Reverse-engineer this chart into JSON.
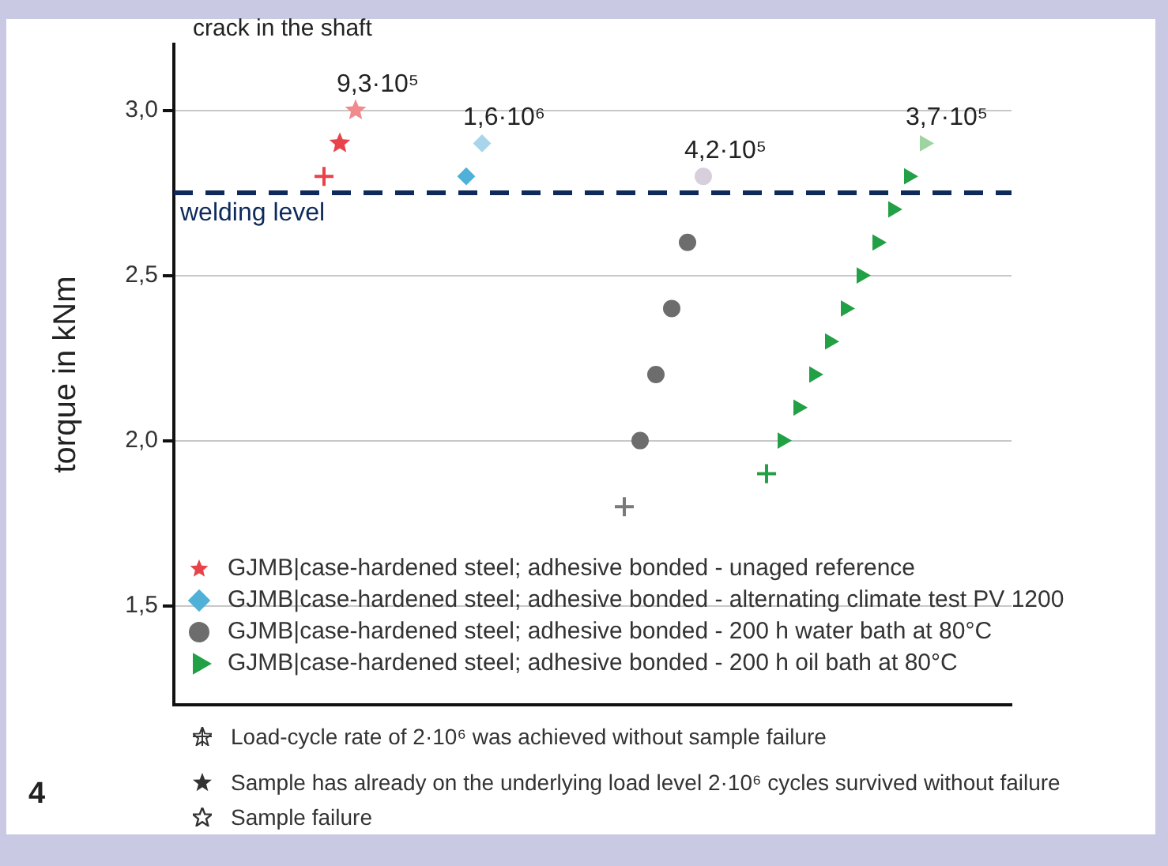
{
  "chart_data": {
    "type": "scatter",
    "categories": [
      null,
      null,
      null,
      null,
      null,
      null,
      null,
      null,
      null,
      null,
      null,
      null,
      null,
      null,
      null,
      null,
      null,
      null,
      null,
      null,
      null,
      null,
      null,
      null,
      null,
      null,
      null,
      null,
      null,
      null,
      null,
      null,
      null,
      null,
      null,
      null,
      null,
      null,
      null,
      null,
      null,
      null,
      null,
      null,
      null,
      null,
      null,
      null,
      null,
      null,
      null,
      null,
      null
    ],
    "ylabel": "torque in kNm",
    "ylim": [
      1.2,
      3.2
    ],
    "yticks": [
      {
        "value": 1.5,
        "label": "1,5"
      },
      {
        "value": 2,
        "label": "2,0"
      },
      {
        "value": 2.5,
        "label": "2,5"
      },
      {
        "value": 3,
        "label": "3,0"
      }
    ],
    "tick_labels": "y",
    "grid": "y",
    "legend": "bottom left",
    "series": [
      {
        "name": "GJMB|case-hardened steel; adhesive bonded - unaged reference",
        "color": "#e8434a",
        "marker": "star",
        "values": [
          null,
          null,
          null,
          null,
          null,
          null,
          null,
          null,
          null,
          null,
          2.9,
          null,
          null,
          null,
          null,
          null,
          null,
          null,
          null,
          null,
          null,
          null,
          null,
          null,
          null,
          null,
          null,
          null,
          null,
          null,
          null,
          null,
          null,
          null,
          null,
          null,
          null,
          null,
          null,
          null,
          null,
          null,
          null,
          null,
          null,
          null,
          null,
          null,
          null,
          null,
          null,
          null,
          null
        ]
      },
      {
        "color": "#e8434a",
        "marker": "cross",
        "values": [
          null,
          null,
          null,
          null,
          null,
          null,
          null,
          null,
          null,
          2.8,
          null,
          null,
          null,
          null,
          null,
          null,
          null,
          null,
          null,
          null,
          null,
          null,
          null,
          null,
          null,
          null,
          null,
          null,
          null,
          null,
          null,
          null,
          null,
          null,
          null,
          null,
          null,
          null,
          null,
          null,
          null,
          null,
          null,
          null,
          null,
          null,
          null,
          null,
          null,
          null,
          null,
          null,
          null
        ]
      },
      {
        "color": "#f08a8e",
        "marker": "star",
        "values": [
          null,
          null,
          null,
          null,
          null,
          null,
          null,
          null,
          null,
          null,
          null,
          3.0,
          null,
          null,
          null,
          null,
          null,
          null,
          null,
          null,
          null,
          null,
          null,
          null,
          null,
          null,
          null,
          null,
          null,
          null,
          null,
          null,
          null,
          null,
          null,
          null,
          null,
          null,
          null,
          null,
          null,
          null,
          null,
          null,
          null,
          null,
          null,
          null,
          null,
          null,
          null,
          null,
          null
        ],
        "value_labels": [
          null,
          null,
          null,
          null,
          null,
          null,
          null,
          null,
          null,
          null,
          null,
          "9,3·10⁵",
          null,
          null,
          null,
          null,
          null,
          null,
          null,
          null,
          null,
          null,
          null,
          null,
          null,
          null,
          null,
          null,
          null,
          null,
          null,
          null,
          null,
          null,
          null,
          null,
          null,
          null,
          null,
          null,
          null,
          null,
          null,
          null,
          null,
          null,
          null,
          null,
          null,
          null,
          null,
          null,
          null
        ]
      },
      {
        "name": "GJMB|case-hardened steel; adhesive bonded - alternating climate test PV 1200",
        "color": "#4fb0d8",
        "marker": "diamond",
        "values": [
          null,
          null,
          null,
          null,
          null,
          null,
          null,
          null,
          null,
          null,
          null,
          null,
          null,
          null,
          null,
          null,
          null,
          null,
          2.8,
          null,
          null,
          null,
          null,
          null,
          null,
          null,
          null,
          null,
          null,
          null,
          null,
          null,
          null,
          null,
          null,
          null,
          null,
          null,
          null,
          null,
          null,
          null,
          null,
          null,
          null,
          null,
          null,
          null,
          null,
          null,
          null,
          null,
          null
        ]
      },
      {
        "color": "#a8d4ec",
        "marker": "diamond",
        "values": [
          null,
          null,
          null,
          null,
          null,
          null,
          null,
          null,
          null,
          null,
          null,
          null,
          null,
          null,
          null,
          null,
          null,
          null,
          null,
          2.9,
          null,
          null,
          null,
          null,
          null,
          null,
          null,
          null,
          null,
          null,
          null,
          null,
          null,
          null,
          null,
          null,
          null,
          null,
          null,
          null,
          null,
          null,
          null,
          null,
          null,
          null,
          null,
          null,
          null,
          null,
          null,
          null,
          null
        ],
        "value_labels": [
          null,
          null,
          null,
          null,
          null,
          null,
          null,
          null,
          null,
          null,
          null,
          null,
          null,
          null,
          null,
          null,
          null,
          null,
          null,
          "1,6·10⁶",
          null,
          null,
          null,
          null,
          null,
          null,
          null,
          null,
          null,
          null,
          null,
          null,
          null,
          null,
          null,
          null,
          null,
          null,
          null,
          null,
          null,
          null,
          null,
          null,
          null,
          null,
          null,
          null,
          null,
          null,
          null,
          null,
          null
        ]
      },
      {
        "name": "GJMB|case-hardened steel; adhesive bonded - 200 h water bath at 80°C",
        "color": "#6d6d6d",
        "marker": "circle",
        "values": [
          null,
          null,
          null,
          null,
          null,
          null,
          null,
          null,
          null,
          null,
          null,
          null,
          null,
          null,
          null,
          null,
          null,
          null,
          null,
          null,
          null,
          null,
          null,
          null,
          null,
          null,
          null,
          null,
          null,
          2.0,
          2.2,
          2.4,
          2.6,
          null,
          null,
          null,
          null,
          null,
          null,
          null,
          null,
          null,
          null,
          null,
          null,
          null,
          null,
          null,
          null,
          null,
          null,
          null,
          null
        ]
      },
      {
        "color": "#7a7a7a",
        "marker": "cross",
        "values": [
          null,
          null,
          null,
          null,
          null,
          null,
          null,
          null,
          null,
          null,
          null,
          null,
          null,
          null,
          null,
          null,
          null,
          null,
          null,
          null,
          null,
          null,
          null,
          null,
          null,
          null,
          null,
          null,
          1.8,
          null,
          null,
          null,
          null,
          null,
          null,
          null,
          null,
          null,
          null,
          null,
          null,
          null,
          null,
          null,
          null,
          null,
          null,
          null,
          null,
          null,
          null,
          null,
          null
        ]
      },
      {
        "color": "#d8cfdc",
        "marker": "circle",
        "values": [
          null,
          null,
          null,
          null,
          null,
          null,
          null,
          null,
          null,
          null,
          null,
          null,
          null,
          null,
          null,
          null,
          null,
          null,
          null,
          null,
          null,
          null,
          null,
          null,
          null,
          null,
          null,
          null,
          null,
          null,
          null,
          null,
          null,
          2.8,
          null,
          null,
          null,
          null,
          null,
          null,
          null,
          null,
          null,
          null,
          null,
          null,
          null,
          null,
          null,
          null,
          null,
          null,
          null
        ],
        "value_labels": [
          null,
          null,
          null,
          null,
          null,
          null,
          null,
          null,
          null,
          null,
          null,
          null,
          null,
          null,
          null,
          null,
          null,
          null,
          null,
          null,
          null,
          null,
          null,
          null,
          null,
          null,
          null,
          null,
          null,
          null,
          null,
          null,
          null,
          "4,2·10⁵",
          null,
          null,
          null,
          null,
          null,
          null,
          null,
          null,
          null,
          null,
          null,
          null,
          null,
          null,
          null,
          null,
          null,
          null,
          null
        ]
      },
      {
        "name": "GJMB|case-hardened steel; adhesive bonded - 200 h oil bath at 80°C",
        "color": "#22a045",
        "marker": "triangle",
        "values": [
          null,
          null,
          null,
          null,
          null,
          null,
          null,
          null,
          null,
          null,
          null,
          null,
          null,
          null,
          null,
          null,
          null,
          null,
          null,
          null,
          null,
          null,
          null,
          null,
          null,
          null,
          null,
          null,
          null,
          null,
          null,
          null,
          null,
          null,
          null,
          null,
          null,
          null,
          2.0,
          2.1,
          2.2,
          2.3,
          2.4,
          2.5,
          2.6,
          2.7,
          2.8,
          null,
          null,
          null,
          null,
          null,
          null
        ]
      },
      {
        "color": "#22a045",
        "marker": "cross",
        "values": [
          null,
          null,
          null,
          null,
          null,
          null,
          null,
          null,
          null,
          null,
          null,
          null,
          null,
          null,
          null,
          null,
          null,
          null,
          null,
          null,
          null,
          null,
          null,
          null,
          null,
          null,
          null,
          null,
          null,
          null,
          null,
          null,
          null,
          null,
          null,
          null,
          null,
          1.9,
          null,
          null,
          null,
          null,
          null,
          null,
          null,
          null,
          null,
          null,
          null,
          null,
          null,
          null,
          null
        ]
      },
      {
        "color": "#9dd49f",
        "marker": "triangle",
        "values": [
          null,
          null,
          null,
          null,
          null,
          null,
          null,
          null,
          null,
          null,
          null,
          null,
          null,
          null,
          null,
          null,
          null,
          null,
          null,
          null,
          null,
          null,
          null,
          null,
          null,
          null,
          null,
          null,
          null,
          null,
          null,
          null,
          null,
          null,
          null,
          null,
          null,
          null,
          null,
          null,
          null,
          null,
          null,
          null,
          null,
          null,
          null,
          2.9,
          null,
          null,
          null,
          null,
          null
        ],
        "value_labels": [
          null,
          null,
          null,
          null,
          null,
          null,
          null,
          null,
          null,
          null,
          null,
          null,
          null,
          null,
          null,
          null,
          null,
          null,
          null,
          null,
          null,
          null,
          null,
          null,
          null,
          null,
          null,
          null,
          null,
          null,
          null,
          null,
          null,
          null,
          null,
          null,
          null,
          null,
          null,
          null,
          null,
          null,
          null,
          null,
          null,
          null,
          null,
          "3,7·10⁵",
          null,
          null,
          null,
          null,
          null
        ]
      }
    ],
    "ref_lines": [
      {
        "axis": "y",
        "value": 2.75,
        "label": "welding level",
        "color": "#0d2a5a",
        "line_style": "dashed"
      }
    ],
    "annotations": [
      "crack in the shaft",
      "Load-cycle rate of 2·10⁶ was achieved without sample failure",
      "Sample has already on the underlying load level 2·10⁶ cycles survived without failure",
      "Sample failure",
      "4"
    ]
  }
}
